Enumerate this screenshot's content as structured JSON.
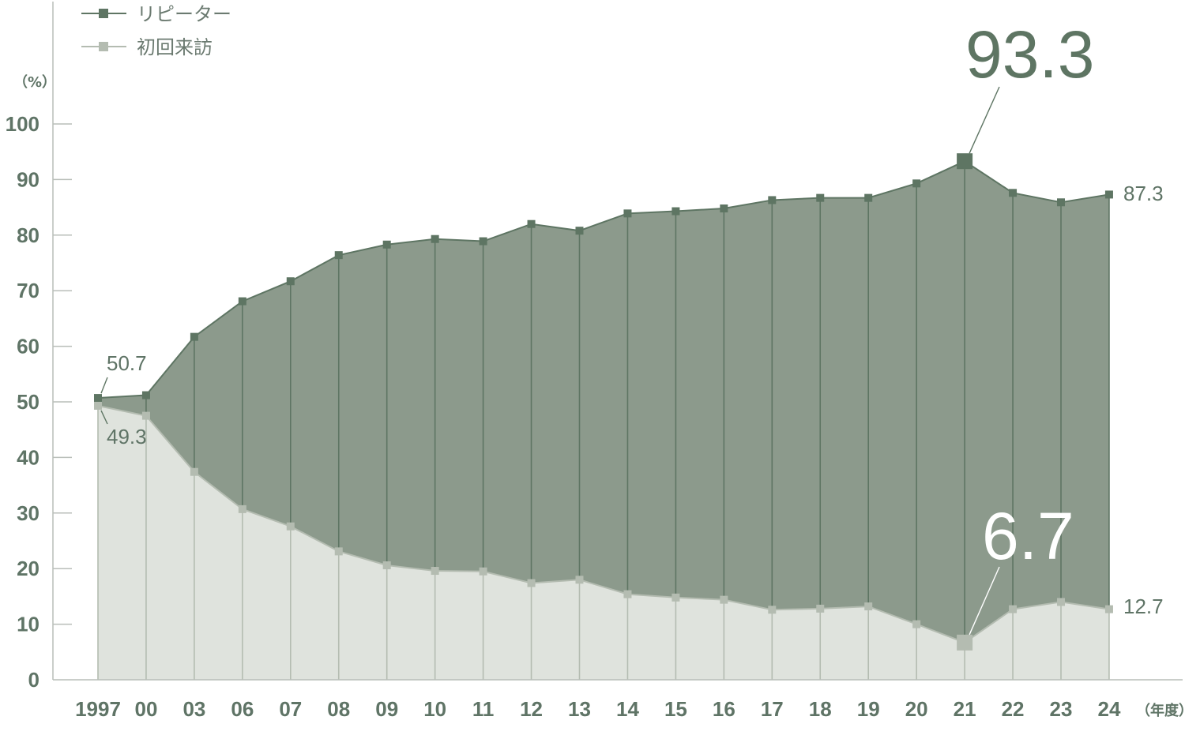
{
  "chart_data": {
    "type": "area",
    "categories": [
      "1997",
      "00",
      "03",
      "06",
      "07",
      "08",
      "09",
      "10",
      "11",
      "12",
      "13",
      "14",
      "15",
      "16",
      "17",
      "18",
      "19",
      "20",
      "21",
      "22",
      "23",
      "24"
    ],
    "series": [
      {
        "name": "リピーター",
        "values": [
          50.7,
          51.2,
          61.7,
          68.1,
          71.7,
          76.4,
          78.3,
          79.3,
          78.9,
          82.0,
          80.8,
          83.9,
          84.3,
          84.8,
          86.3,
          86.7,
          86.7,
          89.3,
          93.3,
          87.6,
          85.9,
          87.3
        ]
      },
      {
        "name": "初回来訪",
        "values": [
          49.3,
          47.5,
          37.4,
          30.7,
          27.6,
          23.1,
          20.6,
          19.6,
          19.5,
          17.4,
          18.0,
          15.4,
          14.8,
          14.4,
          12.6,
          12.8,
          13.2,
          10.0,
          6.7,
          12.7,
          14.0,
          12.7
        ]
      }
    ],
    "ylim": [
      0,
      100
    ],
    "yticks": [
      0,
      10,
      20,
      30,
      40,
      50,
      60,
      70,
      80,
      90,
      100
    ],
    "ylabel": "（%）",
    "xlabel": "（年度）",
    "legend_position": "top-left",
    "annotations": {
      "first_repeat": "50.7",
      "first_new": "49.3",
      "peak_repeat": "93.3",
      "low_new": "6.7",
      "last_repeat": "87.3",
      "last_new": "12.7"
    },
    "colors": {
      "repeat_line": "#5e7563",
      "repeat_fill": "#8c9a8c",
      "new_line": "#b4bcb1",
      "new_fill": "#dfe3dd",
      "text": "#5f7466",
      "axis": "#b9beb9"
    }
  }
}
